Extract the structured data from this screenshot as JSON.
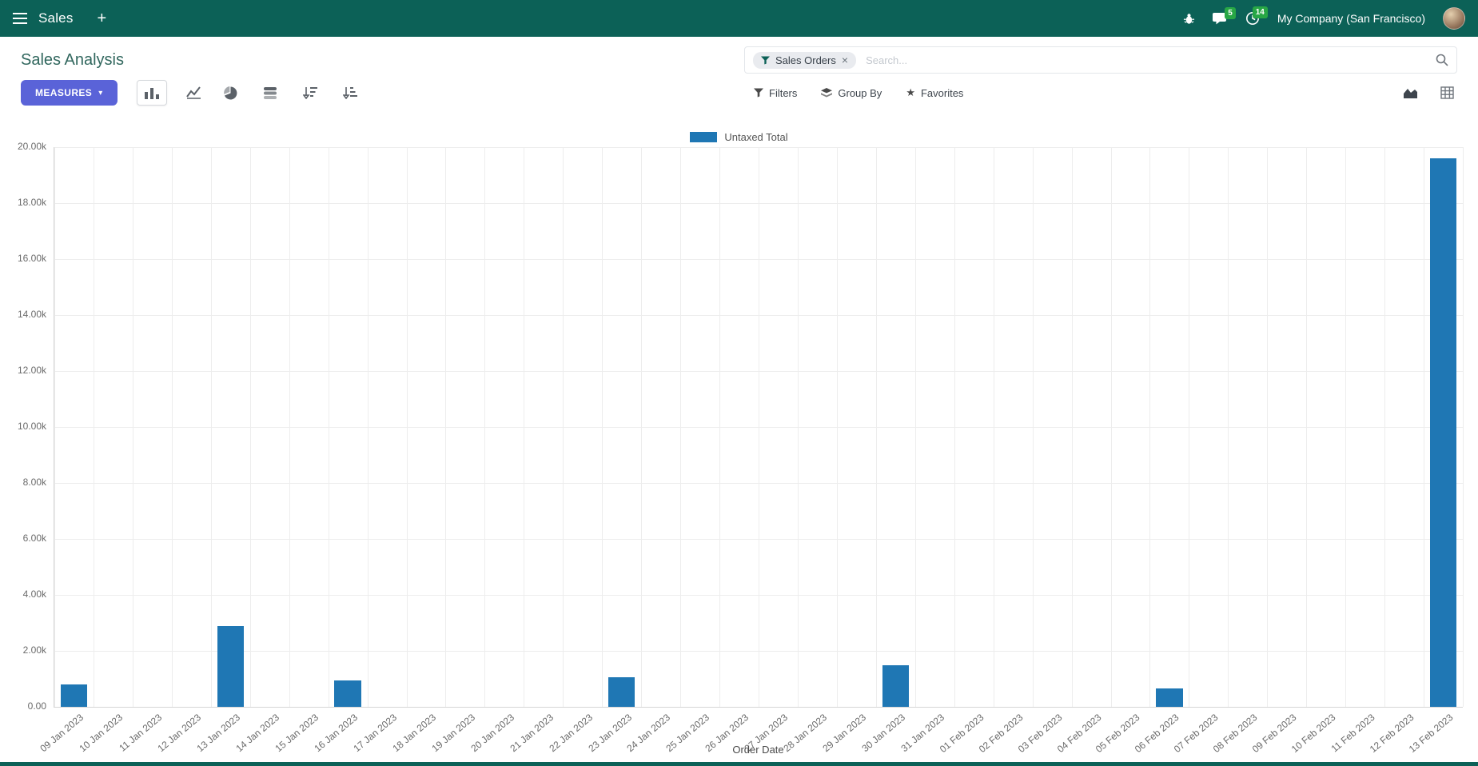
{
  "colors": {
    "navbar_bg": "#0c6157",
    "primary_button": "#5a63d8",
    "badge_bg": "#28a745"
  },
  "navbar": {
    "app_name": "Sales",
    "company_name": "My Company (San Francisco)",
    "messages_badge": "5",
    "activities_badge": "14"
  },
  "control_panel": {
    "title": "Sales Analysis",
    "measures_button": "MEASURES",
    "search": {
      "facet_label": "Sales Orders",
      "placeholder": "Search...",
      "facet_remove": "×"
    },
    "filters_label": "Filters",
    "group_by_label": "Group By",
    "favorites_label": "Favorites"
  },
  "icons": {
    "caret_down": "▾",
    "star": "★",
    "plus": "+"
  },
  "chart_data": {
    "type": "bar",
    "title": "",
    "xlabel": "Order Date",
    "ylabel": "",
    "ylim": [
      0,
      20000
    ],
    "yticks": [
      0,
      2000,
      4000,
      6000,
      8000,
      10000,
      12000,
      14000,
      16000,
      18000,
      20000
    ],
    "ytick_labels": [
      "0.00",
      "2.00k",
      "4.00k",
      "6.00k",
      "8.00k",
      "10.00k",
      "12.00k",
      "14.00k",
      "16.00k",
      "18.00k",
      "20.00k"
    ],
    "grid": true,
    "legend_position": "top",
    "categories": [
      "09 Jan 2023",
      "10 Jan 2023",
      "11 Jan 2023",
      "12 Jan 2023",
      "13 Jan 2023",
      "14 Jan 2023",
      "15 Jan 2023",
      "16 Jan 2023",
      "17 Jan 2023",
      "18 Jan 2023",
      "19 Jan 2023",
      "20 Jan 2023",
      "21 Jan 2023",
      "22 Jan 2023",
      "23 Jan 2023",
      "24 Jan 2023",
      "25 Jan 2023",
      "26 Jan 2023",
      "27 Jan 2023",
      "28 Jan 2023",
      "29 Jan 2023",
      "30 Jan 2023",
      "31 Jan 2023",
      "01 Feb 2023",
      "02 Feb 2023",
      "03 Feb 2023",
      "04 Feb 2023",
      "05 Feb 2023",
      "06 Feb 2023",
      "07 Feb 2023",
      "08 Feb 2023",
      "09 Feb 2023",
      "10 Feb 2023",
      "11 Feb 2023",
      "12 Feb 2023",
      "13 Feb 2023"
    ],
    "series": [
      {
        "name": "Untaxed Total",
        "color": "#1f77b4",
        "values": [
          800,
          0,
          0,
          0,
          2900,
          0,
          0,
          950,
          0,
          0,
          0,
          0,
          0,
          0,
          1050,
          0,
          0,
          0,
          0,
          0,
          0,
          1500,
          0,
          0,
          0,
          0,
          0,
          0,
          650,
          0,
          0,
          0,
          0,
          0,
          0,
          19600
        ]
      }
    ]
  }
}
